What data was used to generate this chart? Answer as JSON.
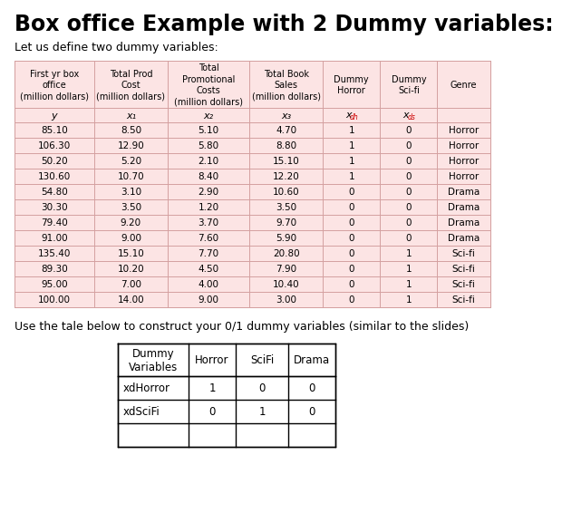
{
  "title": "Box office Example with 2 Dummy variables:",
  "subtitle": "Let us define two dummy variables:",
  "main_col_headers": [
    "First yr box\noffice\n(million dollars)",
    "Total Prod\nCost\n(million dollars)",
    "Total\nPromotional\nCosts\n(million dollars)",
    "Total Book\nSales\n(million dollars)",
    "Dummy\nHorror",
    "Dummy\nSci-fi",
    "Genre"
  ],
  "main_table_data": [
    [
      "85.10",
      "8.50",
      "5.10",
      "4.70",
      "1",
      "0",
      "Horror"
    ],
    [
      "106.30",
      "12.90",
      "5.80",
      "8.80",
      "1",
      "0",
      "Horror"
    ],
    [
      "50.20",
      "5.20",
      "2.10",
      "15.10",
      "1",
      "0",
      "Horror"
    ],
    [
      "130.60",
      "10.70",
      "8.40",
      "12.20",
      "1",
      "0",
      "Horror"
    ],
    [
      "54.80",
      "3.10",
      "2.90",
      "10.60",
      "0",
      "0",
      "Drama"
    ],
    [
      "30.30",
      "3.50",
      "1.20",
      "3.50",
      "0",
      "0",
      "Drama"
    ],
    [
      "79.40",
      "9.20",
      "3.70",
      "9.70",
      "0",
      "0",
      "Drama"
    ],
    [
      "91.00",
      "9.00",
      "7.60",
      "5.90",
      "0",
      "0",
      "Drama"
    ],
    [
      "135.40",
      "15.10",
      "7.70",
      "20.80",
      "0",
      "1",
      "Sci-fi"
    ],
    [
      "89.30",
      "10.20",
      "4.50",
      "7.90",
      "0",
      "1",
      "Sci-fi"
    ],
    [
      "95.00",
      "7.00",
      "4.00",
      "10.40",
      "0",
      "1",
      "Sci-fi"
    ],
    [
      "100.00",
      "14.00",
      "9.00",
      "3.00",
      "0",
      "1",
      "Sci-fi"
    ]
  ],
  "table_bg_color": "#fce4e4",
  "line_color": "#d4a0a0",
  "note_text": "Use the tale below to construct your 0/1 dummy variables (similar to the slides)",
  "dummy_table_headers": [
    "Dummy\nVariables",
    "Horror",
    "SciFi",
    "Drama"
  ],
  "dummy_table_rows": [
    [
      "xdHorror",
      "1",
      "0",
      "0"
    ],
    [
      "xdSciFi",
      "0",
      "1",
      "0"
    ],
    [
      "",
      "",
      "",
      ""
    ]
  ],
  "bg_color": "#ffffff",
  "title_fontsize": 17,
  "subtitle_fontsize": 9,
  "header_fontsize": 7,
  "data_fontsize": 7.5,
  "note_fontsize": 9,
  "dummy_fontsize": 8.5
}
